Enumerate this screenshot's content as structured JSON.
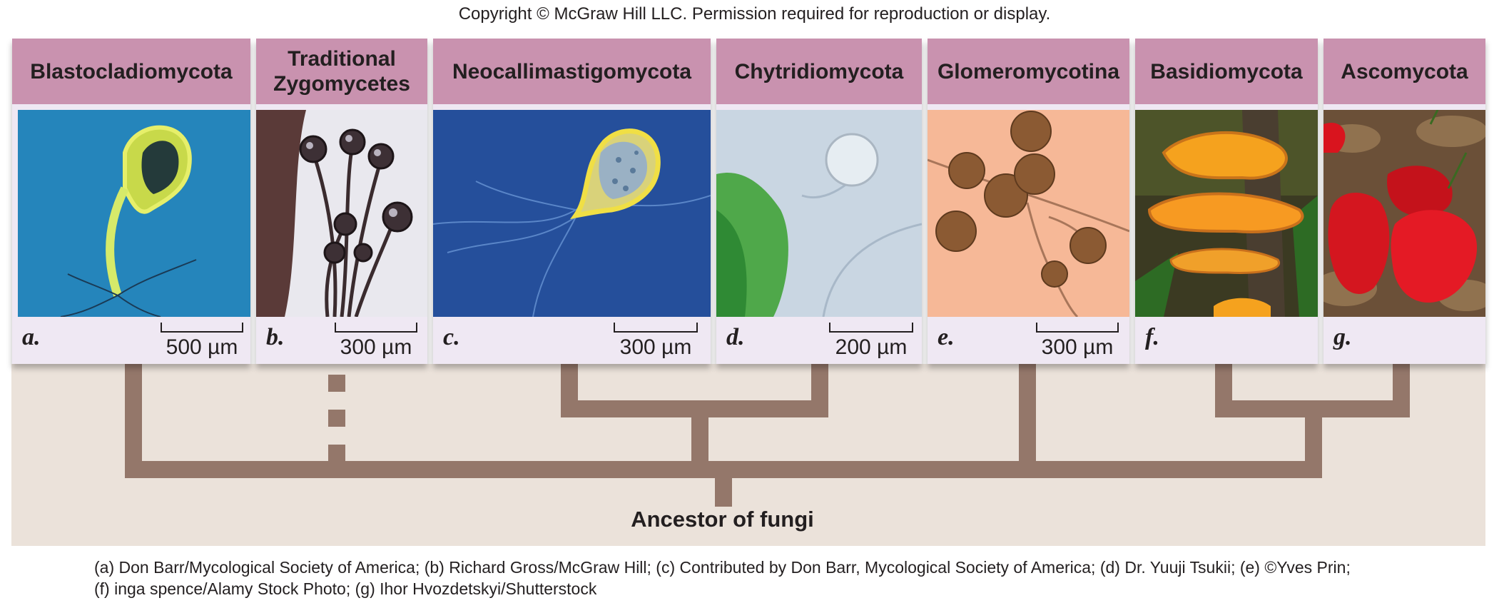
{
  "copyright": "Copyright © McGraw Hill LLC. Permission required for reproduction or display.",
  "groups": [
    {
      "name": "Blastocladiomycota",
      "letter": "a.",
      "scale": "500 µm"
    },
    {
      "name": "Traditional Zygomycetes",
      "letter": "b.",
      "scale": "300 µm"
    },
    {
      "name": "Neocallimastigomycota",
      "letter": "c.",
      "scale": "300 µm"
    },
    {
      "name": "Chytridiomycota",
      "letter": "d.",
      "scale": "200 µm"
    },
    {
      "name": "Glomeromycotina",
      "letter": "e.",
      "scale": "300 µm"
    },
    {
      "name": "Basidiomycota",
      "letter": "f.",
      "scale": ""
    },
    {
      "name": "Ascomycota",
      "letter": "g.",
      "scale": ""
    }
  ],
  "tree": {
    "root_label": "Ancestor of fungi",
    "branch_color": "#94776a",
    "background_color": "#ebe2da"
  },
  "colors": {
    "header": "#c992af",
    "footer": "#efe8f3"
  },
  "credits": {
    "line1": "(a) Don Barr/Mycological Society of America; (b) Richard Gross/McGraw Hill; (c) Contributed by Don Barr, Mycological Society of America; (d) Dr. Yuuji Tsukii; (e) ©Yves Prin;",
    "line2": "(f) inga spence/Alamy Stock Photo; (g) Ihor Hvozdetskyi/Shutterstock"
  }
}
